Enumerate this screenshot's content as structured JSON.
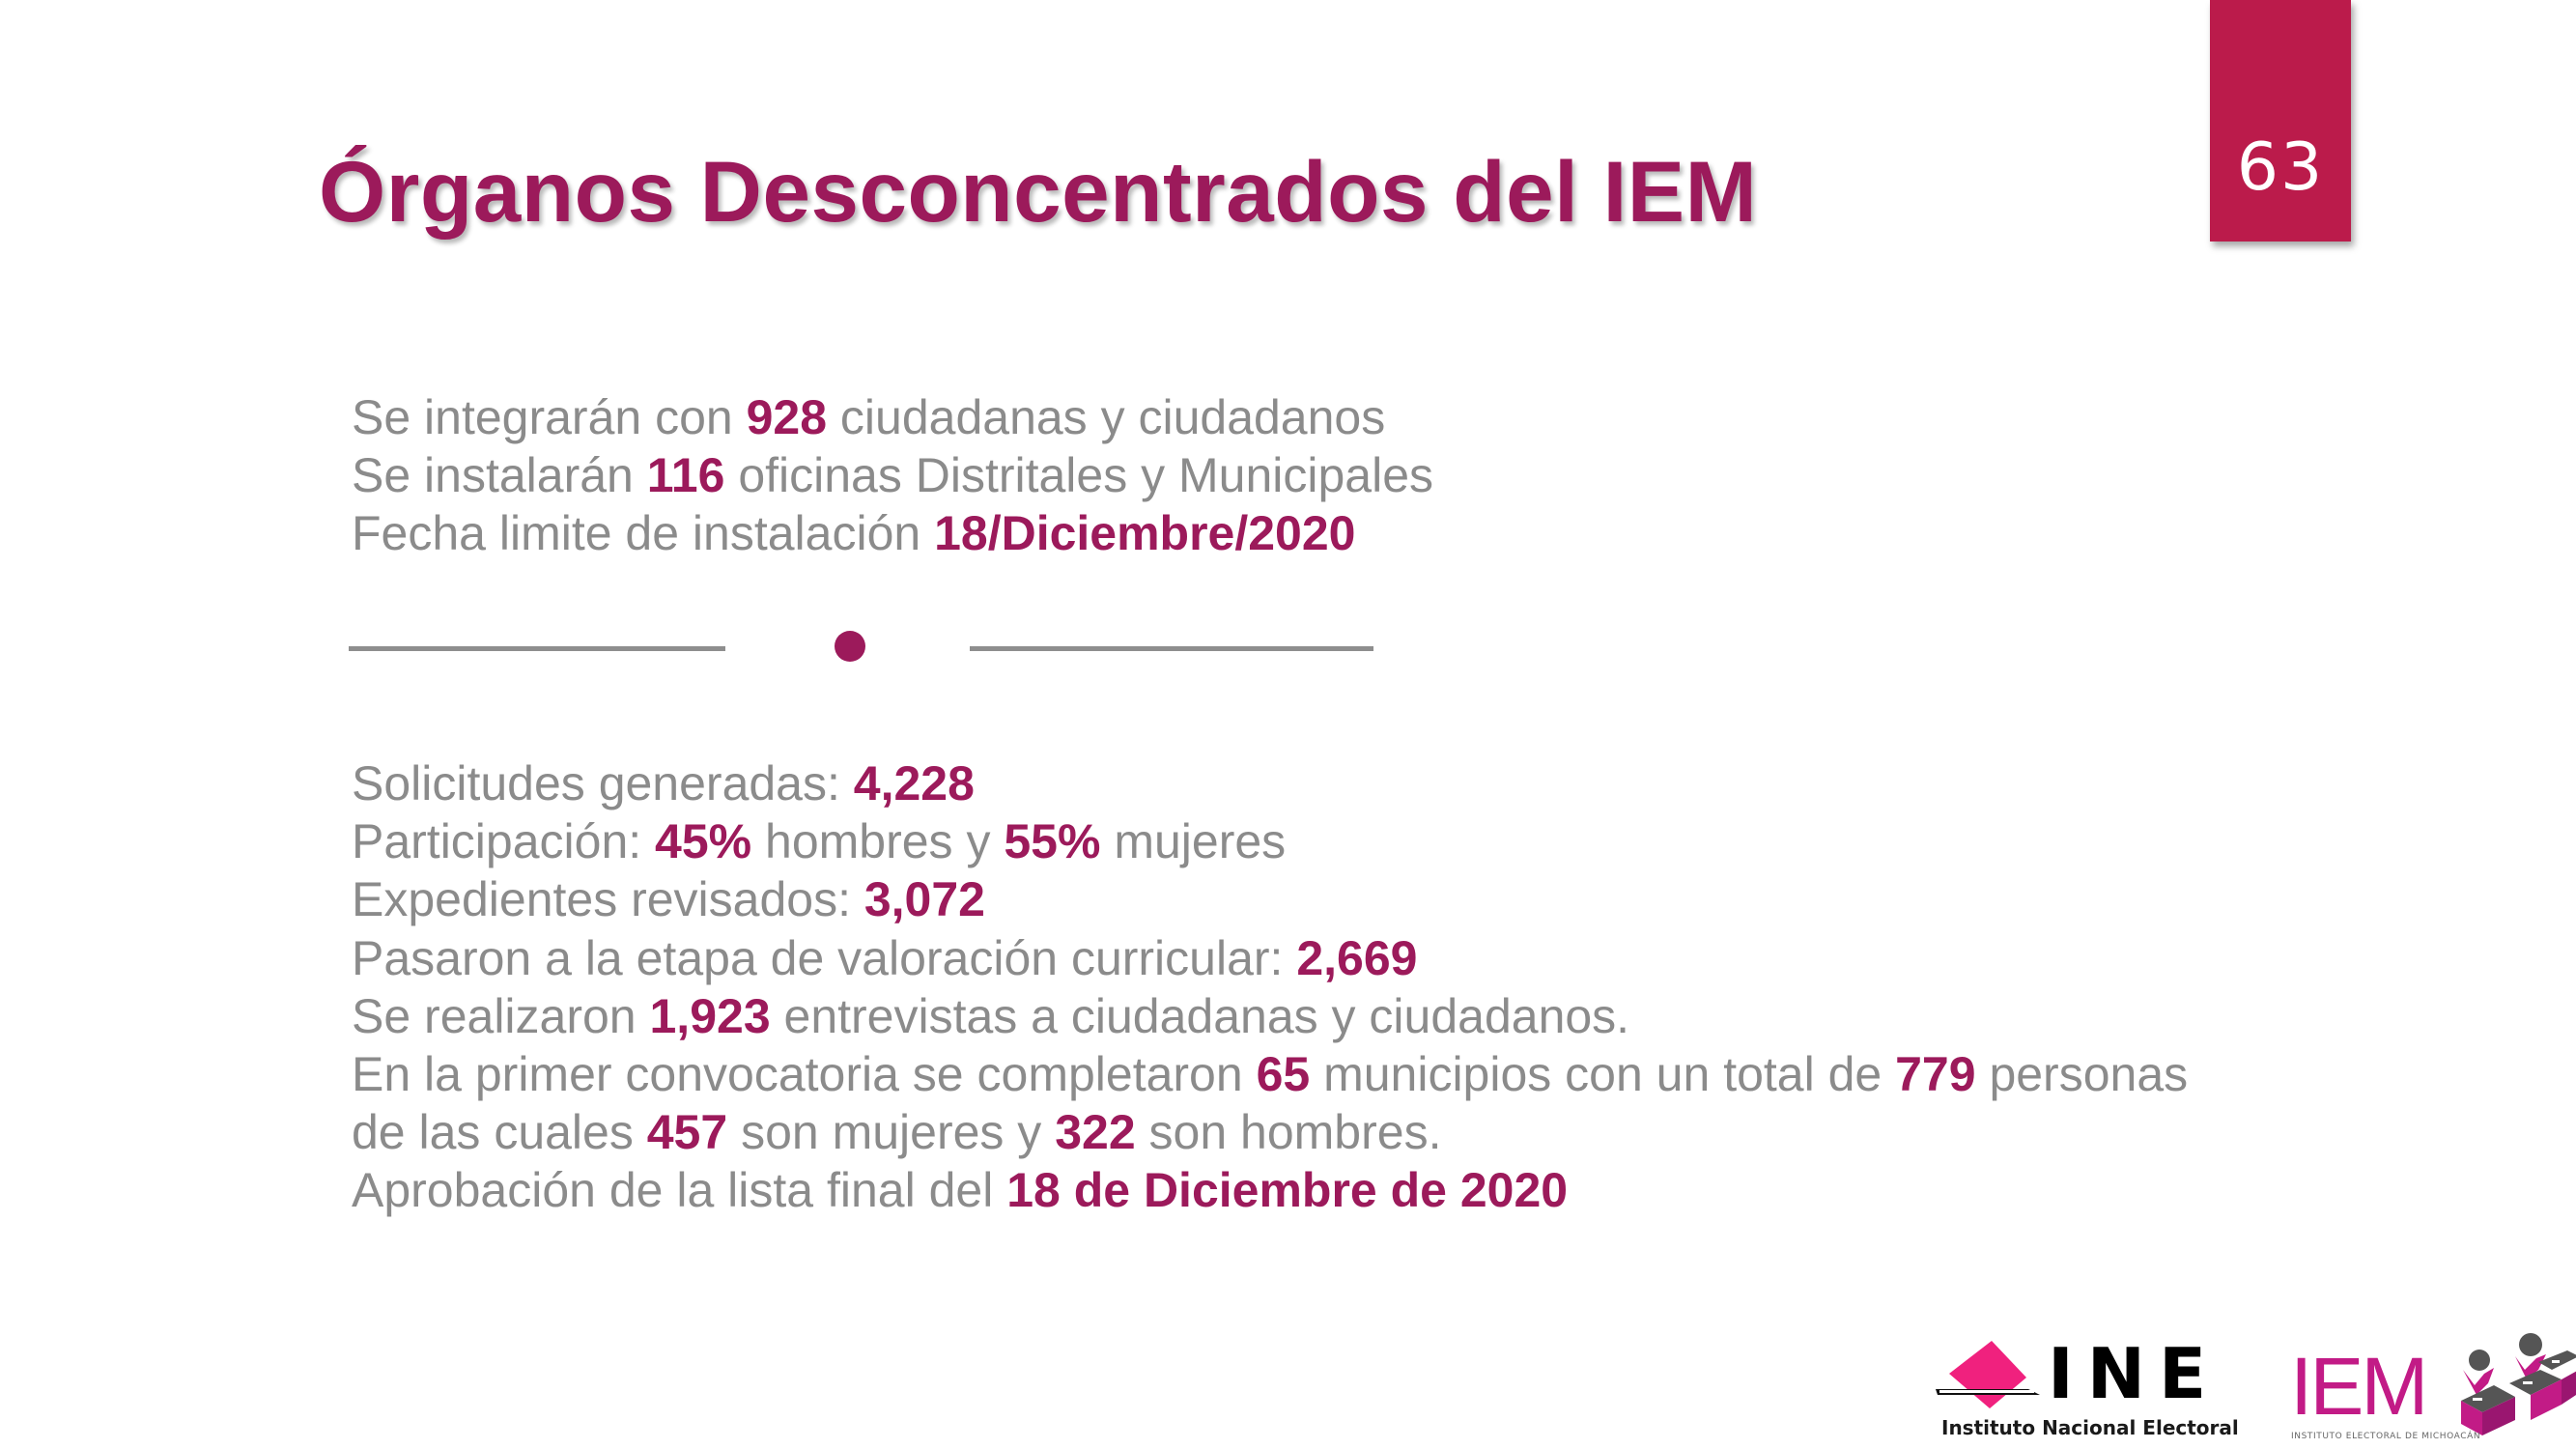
{
  "slide": {
    "title": "Órganos Desconcentrados del IEM",
    "page_number": "63"
  },
  "colors": {
    "accent": "#9c1a5b",
    "page_badge": "#bb1b4b",
    "body_text": "#8b8b8b",
    "ine_pink": "#f0217e",
    "iem_magenta": "#c21b86"
  },
  "summary": [
    {
      "before": "Se integrarán con ",
      "value": "928",
      "after": " ciudadanas y ciudadanos"
    },
    {
      "before": "Se instalarán ",
      "value": "116",
      "after": " oficinas Distritales y Municipales"
    },
    {
      "before": "Fecha limite de instalación ",
      "value": "18/Diciembre/2020",
      "after": ""
    }
  ],
  "details": {
    "solicitudes": {
      "label": "Solicitudes generadas: ",
      "value": "4,228"
    },
    "participacion": {
      "label": "Participación: ",
      "value_men": "45%",
      "mid": " hombres y ",
      "value_women": "55%",
      "end": " mujeres"
    },
    "expedientes": {
      "label": "Expedientes revisados: ",
      "value": "3,072"
    },
    "valoracion": {
      "label": "Pasaron a la etapa de valoración curricular: ",
      "value": "2,669"
    },
    "entrevistas": {
      "before": "Se realizaron ",
      "value": "1,923",
      "after": " entrevistas a ciudadanas y ciudadanos."
    },
    "convocatoria": {
      "before": "En la primer convocatoria se completaron ",
      "municipios": "65",
      "mid": " municipios con un total de ",
      "personas": "779",
      "after": " personas"
    },
    "desglose": {
      "before": "de las cuales ",
      "mujeres": "457",
      "mid": " son mujeres y ",
      "hombres": "322",
      "after": " son hombres."
    },
    "aprobacion": {
      "label": "Aprobación de la lista final del ",
      "value": "18 de Diciembre de 2020"
    }
  },
  "logos": {
    "ine": {
      "mark": "INE",
      "name": "Instituto Nacional Electoral",
      "icon": "ballot-box-icon"
    },
    "iem": {
      "mark": "IEM",
      "name": "INSTITUTO ELECTORAL DE MICHOACÁN",
      "icon": "voters-ballot-boxes-icon"
    }
  }
}
